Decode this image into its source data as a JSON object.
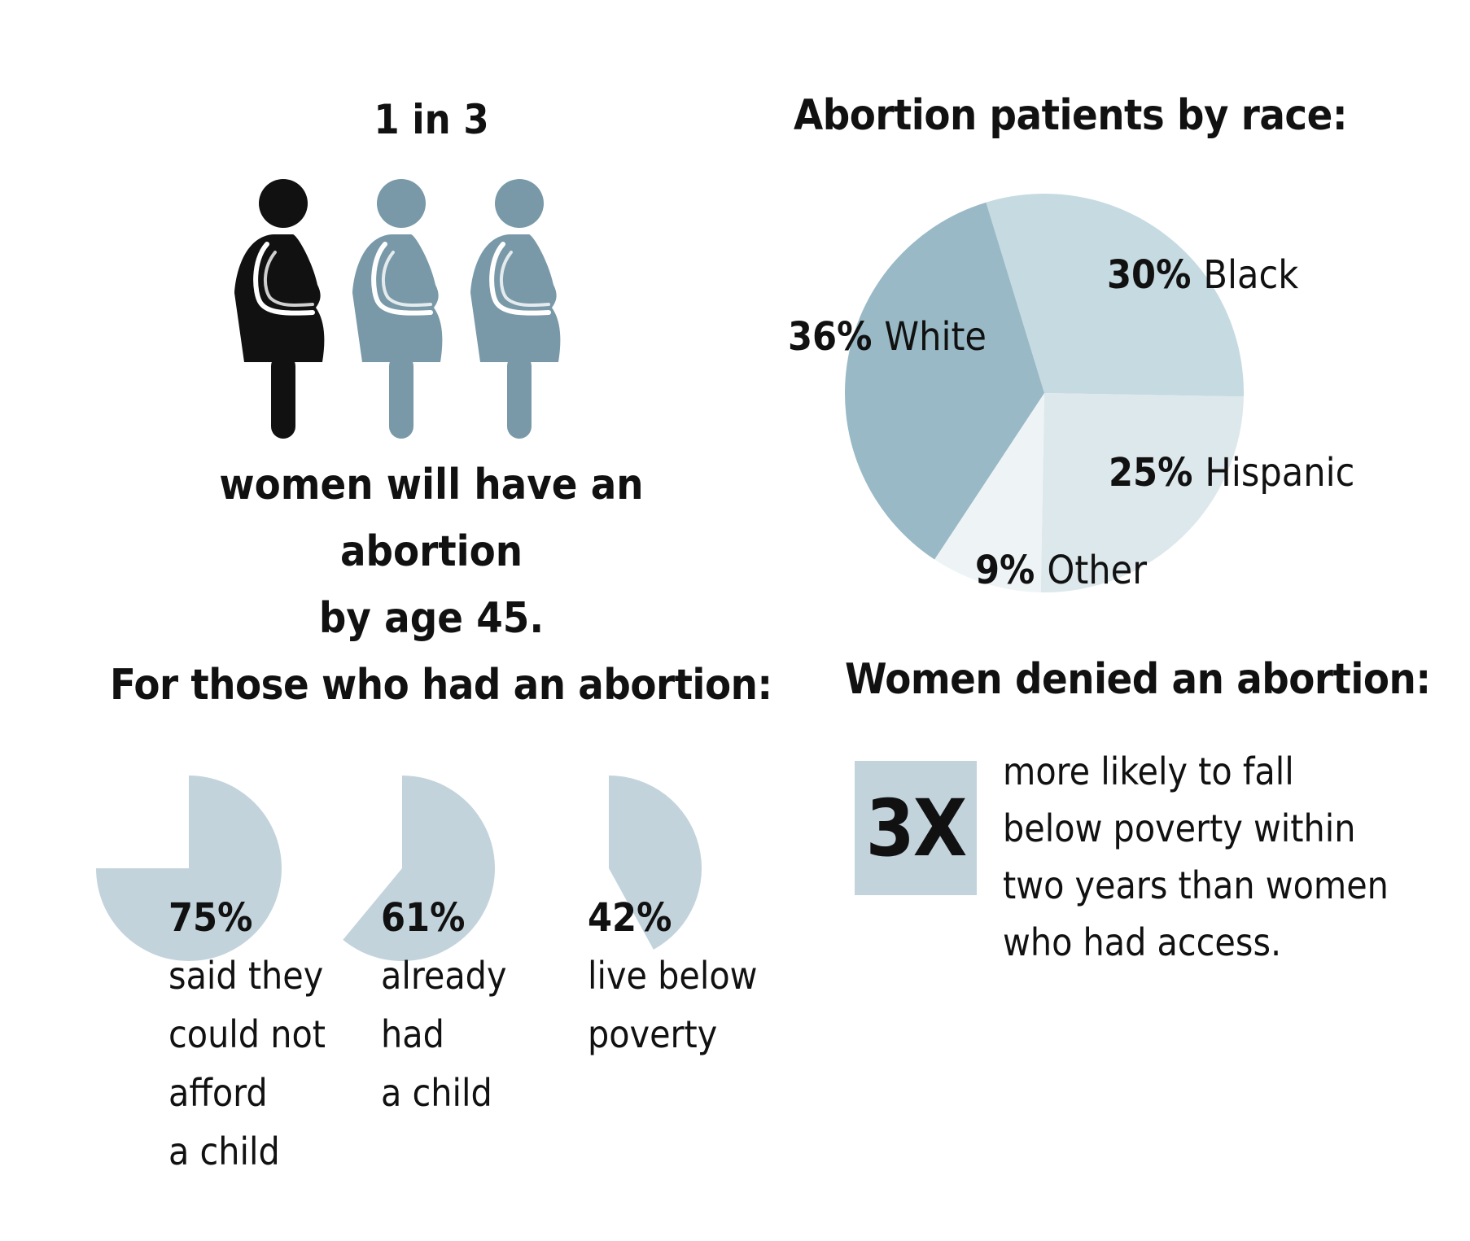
{
  "colors": {
    "figure_highlight": "#111111",
    "figure_muted": "#7999a8",
    "pie_white": "#98b9c5",
    "pie_black": "#c6dae1",
    "pie_hispanic": "#dde8ec",
    "pie_other": "#eef4f6",
    "stat_wedge": "#c2d3dc",
    "box": "#c2d3dc"
  },
  "section_figures": {
    "headline": "1 in 3",
    "figures": [
      {
        "icon": "woman-figure-icon",
        "highlighted": true
      },
      {
        "icon": "woman-figure-icon",
        "highlighted": false
      },
      {
        "icon": "woman-figure-icon",
        "highlighted": false
      }
    ],
    "caption_line1": "women will have an abortion",
    "caption_line2": "by age 45."
  },
  "section_denied": {
    "title": "Women denied an abortion:",
    "multiplier": "3X",
    "lines": [
      "more likely to fall",
      "below poverty within",
      "two years than women",
      "who had access."
    ]
  },
  "chart_data": [
    {
      "type": "pie",
      "title": "Abortion patients by race:",
      "labels": [
        "White",
        "Black",
        "Hispanic",
        "Other"
      ],
      "values": [
        36,
        30,
        25,
        9
      ],
      "value_labels": [
        "36%",
        "30%",
        "25%",
        "9%"
      ]
    },
    {
      "type": "pie",
      "title": "For those who had an abortion:",
      "series": [
        {
          "value": 75,
          "label": "75%",
          "description": "said they\ncould not\nafford\na child"
        },
        {
          "value": 61,
          "label": "61%",
          "description": "already\nhad\na child"
        },
        {
          "value": 42,
          "label": "42%",
          "description": "live below\npoverty"
        }
      ]
    }
  ]
}
